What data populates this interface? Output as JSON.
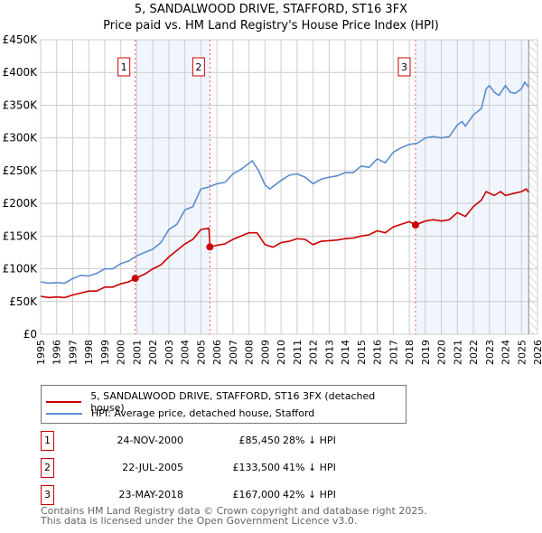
{
  "title_line1": "5, SANDALWOOD DRIVE, STAFFORD, ST16 3FX",
  "title_line2": "Price paid vs. HM Land Registry's House Price Index (HPI)",
  "chart_data": {
    "type": "line",
    "title": "5, SANDALWOOD DRIVE, STAFFORD, ST16 3FX — Price paid vs. HM Land Registry's House Price Index (HPI)",
    "xlim": [
      1995,
      2026
    ],
    "ylim": [
      0,
      450000
    ],
    "yticks": [
      0,
      50000,
      100000,
      150000,
      200000,
      250000,
      300000,
      350000,
      400000,
      450000
    ],
    "ytick_labels": [
      "£0",
      "£50K",
      "£100K",
      "£150K",
      "£200K",
      "£250K",
      "£300K",
      "£350K",
      "£400K",
      "£450K"
    ],
    "xticks": [
      1995,
      1996,
      1997,
      1998,
      1999,
      2000,
      2001,
      2002,
      2003,
      2004,
      2005,
      2006,
      2007,
      2008,
      2009,
      2010,
      2011,
      2012,
      2013,
      2014,
      2015,
      2016,
      2017,
      2018,
      2019,
      2020,
      2021,
      2022,
      2023,
      2024,
      2025,
      2026
    ],
    "grid": true,
    "data_end": 2025.45,
    "series": [
      {
        "name": "5, SANDALWOOD DRIVE, STAFFORD, ST16 3FX (detached house)",
        "color": "#cc0000",
        "x": [
          1995,
          1995.5,
          1996,
          1996.5,
          1997,
          1997.5,
          1998,
          1998.5,
          1999,
          1999.5,
          2000,
          2000.5,
          2000.9,
          2001.5,
          2002,
          2002.5,
          2003,
          2003.5,
          2004,
          2004.5,
          2005,
          2005.5,
          2005.56,
          2006,
          2006.5,
          2007,
          2007.5,
          2008,
          2008.5,
          2009,
          2009.5,
          2010,
          2010.5,
          2011,
          2011.5,
          2012,
          2012.5,
          2013,
          2013.5,
          2014,
          2014.5,
          2015,
          2015.5,
          2016,
          2016.5,
          2017,
          2017.5,
          2018,
          2018.39,
          2019,
          2019.5,
          2020,
          2020.5,
          2021,
          2021.5,
          2022,
          2022.5,
          2022.8,
          2023.3,
          2023.7,
          2024,
          2024.5,
          2025,
          2025.3,
          2025.45
        ],
        "y": [
          58000,
          56000,
          57000,
          56000,
          60000,
          63000,
          66000,
          66000,
          72000,
          72000,
          77000,
          80000,
          85450,
          92000,
          100000,
          106000,
          118000,
          128000,
          138000,
          145000,
          160000,
          162000,
          133500,
          136000,
          138000,
          145000,
          150000,
          155000,
          155000,
          137000,
          133000,
          140000,
          142000,
          146000,
          145000,
          137000,
          142000,
          143000,
          144000,
          146000,
          147000,
          150000,
          152000,
          158000,
          155000,
          164000,
          168000,
          172000,
          167000,
          173000,
          175000,
          173000,
          175000,
          186000,
          180000,
          195000,
          205000,
          218000,
          212000,
          218000,
          212000,
          215000,
          218000,
          222000,
          217000
        ]
      },
      {
        "name": "HPI: Average price, detached house, Stafford",
        "color": "#5b8dd0",
        "x": [
          1995,
          1995.5,
          1996,
          1996.5,
          1997,
          1997.5,
          1998,
          1998.5,
          1999,
          1999.5,
          2000,
          2000.5,
          2001,
          2001.5,
          2002,
          2002.5,
          2003,
          2003.5,
          2004,
          2004.5,
          2005,
          2005.5,
          2006,
          2006.5,
          2007,
          2007.5,
          2008.2,
          2008.6,
          2009,
          2009.3,
          2010,
          2010.5,
          2011,
          2011.5,
          2012,
          2012.5,
          2013,
          2013.5,
          2014,
          2014.5,
          2015,
          2015.5,
          2016,
          2016.5,
          2017,
          2017.5,
          2018,
          2018.5,
          2019,
          2019.5,
          2020,
          2020.5,
          2021,
          2021.3,
          2021.5,
          2022,
          2022.5,
          2022.8,
          2023,
          2023.3,
          2023.6,
          2024,
          2024.3,
          2024.6,
          2025,
          2025.2,
          2025.45
        ],
        "y": [
          80000,
          78000,
          79000,
          78000,
          85000,
          90000,
          89000,
          93000,
          100000,
          100000,
          108000,
          112000,
          120000,
          125000,
          130000,
          140000,
          160000,
          168000,
          190000,
          195000,
          222000,
          225000,
          230000,
          232000,
          245000,
          252000,
          265000,
          250000,
          228000,
          222000,
          235000,
          243000,
          245000,
          240000,
          230000,
          237000,
          240000,
          242000,
          247000,
          247000,
          257000,
          255000,
          268000,
          262000,
          278000,
          285000,
          290000,
          292000,
          300000,
          302000,
          300000,
          302000,
          320000,
          325000,
          318000,
          335000,
          345000,
          375000,
          380000,
          370000,
          365000,
          380000,
          370000,
          368000,
          375000,
          385000,
          378000
        ]
      }
    ],
    "sales": [
      {
        "label": "1",
        "x": 2000.9,
        "y": 85450
      },
      {
        "label": "2",
        "x": 2005.56,
        "y": 133500
      },
      {
        "label": "3",
        "x": 2018.39,
        "y": 167000
      }
    ],
    "shaded_ranges": [
      [
        2000.9,
        2005.56
      ],
      [
        2018.39,
        2025.45
      ]
    ],
    "legend_placement": "below"
  },
  "legend": {
    "property": "5, SANDALWOOD DRIVE, STAFFORD, ST16 3FX (detached house)",
    "hpi": "HPI: Average price, detached house, Stafford"
  },
  "transactions": [
    {
      "num": "1",
      "date": "24-NOV-2000",
      "price": "£85,450",
      "delta": "28% ↓ HPI"
    },
    {
      "num": "2",
      "date": "22-JUL-2005",
      "price": "£133,500",
      "delta": "41% ↓ HPI"
    },
    {
      "num": "3",
      "date": "23-MAY-2018",
      "price": "£167,000",
      "delta": "42% ↓ HPI"
    }
  ],
  "footer_line1": "Contains HM Land Registry data © Crown copyright and database right 2025.",
  "footer_line2": "This data is licensed under the Open Government Licence v3.0."
}
